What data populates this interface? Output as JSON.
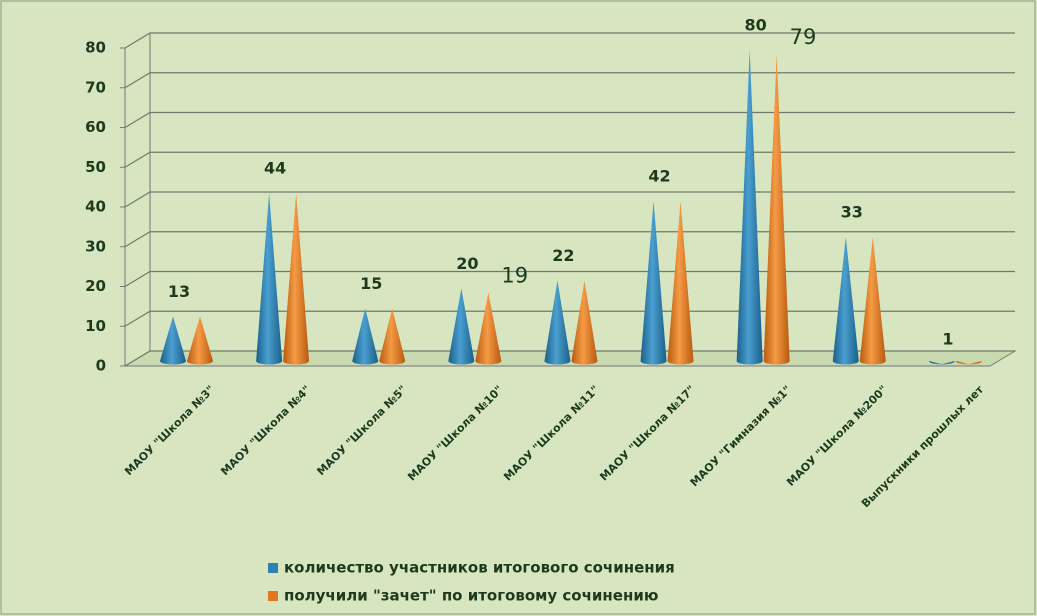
{
  "chart_data": {
    "type": "cone",
    "categories": [
      "МАОУ \"Школа №3\"",
      "МАОУ \"Школа №4\"",
      "МАОУ \"Школа №5\"",
      "МАОУ \"Школа №10\"",
      "МАОУ \"Школа №11\"",
      "МАОУ \"Школа №17\"",
      "МАОУ \"Гимназия №1\"",
      "МАОУ \"Школа №200\"",
      "Выпускники прошлых лет"
    ],
    "series": [
      {
        "name": "количество участников итогового сочинения",
        "color": "#2e7fb2",
        "values": [
          13,
          44,
          15,
          20,
          22,
          42,
          80,
          33,
          1
        ]
      },
      {
        "name": "получили \"зачет\" по итоговому сочинению",
        "color": "#e2781e",
        "values": [
          13,
          44,
          15,
          19,
          22,
          42,
          79,
          33,
          1
        ],
        "value_labels": [
          null,
          null,
          null,
          "19",
          null,
          null,
          "79",
          null,
          null
        ]
      }
    ],
    "ylim": [
      0,
      80
    ],
    "yticks": [
      0,
      10,
      20,
      30,
      40,
      50,
      60,
      70,
      80
    ],
    "grid": true
  }
}
